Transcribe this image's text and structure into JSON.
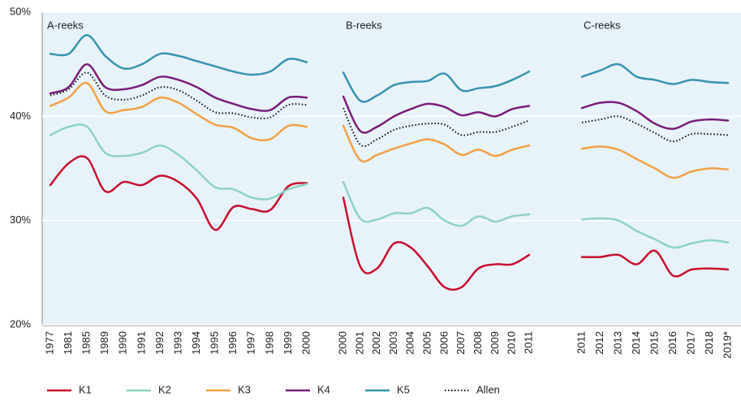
{
  "chart_data": {
    "type": "line",
    "ylim": [
      20,
      50
    ],
    "yticks": [
      {
        "value": 50,
        "label": "50%"
      },
      {
        "value": 40,
        "label": "40%"
      },
      {
        "value": 30,
        "label": "30%"
      },
      {
        "value": 20,
        "label": "20%"
      }
    ],
    "grid": true,
    "series": [
      {
        "name": "K1",
        "color": "#c8102e",
        "style": "solid"
      },
      {
        "name": "K2",
        "color": "#8fd3c1",
        "style": "solid"
      },
      {
        "name": "K3",
        "color": "#f2a04a",
        "style": "solid"
      },
      {
        "name": "K4",
        "color": "#7b1f7a",
        "style": "solid"
      },
      {
        "name": "K5",
        "color": "#3a93b0",
        "style": "solid"
      },
      {
        "name": "Allen",
        "color": "#111111",
        "style": "dotted"
      }
    ],
    "panels": [
      {
        "title": "A-reeks",
        "categories": [
          "1977",
          "1981",
          "1985",
          "1989",
          "1990",
          "1991",
          "1992",
          "1993",
          "1994",
          "1995",
          "1996",
          "1997",
          "1998",
          "1999",
          "2000"
        ],
        "values": [
          [
            33.4,
            35.5,
            36,
            32.8,
            33.7,
            33.4,
            34.3,
            33.7,
            32.1,
            29.1,
            31.3,
            31.1,
            31,
            33.3,
            33.6
          ],
          [
            38.2,
            39,
            39,
            36.5,
            36.2,
            36.5,
            37.2,
            36.3,
            34.8,
            33.2,
            33,
            32.2,
            32.1,
            33,
            33.5
          ],
          [
            41,
            41.8,
            43.2,
            40.5,
            40.6,
            40.9,
            41.8,
            41.3,
            40.2,
            39.2,
            38.9,
            37.9,
            37.8,
            39.1,
            39
          ],
          [
            42.2,
            42.8,
            45,
            42.8,
            42.6,
            43,
            43.8,
            43.5,
            42.8,
            41.8,
            41.2,
            40.7,
            40.6,
            41.8,
            41.8
          ],
          [
            46,
            46,
            47.8,
            45.8,
            44.6,
            45,
            46,
            45.8,
            45.3,
            44.8,
            44.3,
            44,
            44.3,
            45.5,
            45.2
          ],
          [
            42,
            42.6,
            44.2,
            42,
            41.6,
            42,
            42.8,
            42.5,
            41.5,
            40.4,
            40.3,
            39.9,
            39.9,
            41.1,
            41.1
          ]
        ]
      },
      {
        "title": "B-reeks",
        "categories": [
          "2000",
          "2001",
          "2002",
          "2003",
          "2004",
          "2005",
          "2006",
          "2007",
          "2008",
          "2009",
          "2010",
          "2011"
        ],
        "values": [
          [
            32.2,
            25.6,
            25.4,
            27.8,
            27.4,
            25.6,
            23.6,
            23.6,
            25.4,
            25.8,
            25.8,
            26.7
          ],
          [
            33.7,
            30.2,
            30.1,
            30.7,
            30.7,
            31.2,
            30,
            29.5,
            30.4,
            29.9,
            30.4,
            30.6
          ],
          [
            39.1,
            35.8,
            36.3,
            36.9,
            37.4,
            37.8,
            37.3,
            36.3,
            36.8,
            36.2,
            36.8,
            37.2
          ],
          [
            41.9,
            38.6,
            39,
            40,
            40.7,
            41.2,
            40.9,
            40.1,
            40.4,
            40,
            40.7,
            41
          ],
          [
            44.2,
            41.5,
            42,
            43,
            43.3,
            43.4,
            44.1,
            42.5,
            42.7,
            42.9,
            43.5,
            44.3
          ],
          [
            40.8,
            37.3,
            37.8,
            38.7,
            39.1,
            39.3,
            39.2,
            38.2,
            38.5,
            38.5,
            39,
            39.6
          ]
        ]
      },
      {
        "title": "C-reeks",
        "categories": [
          "2011",
          "2012",
          "2013",
          "2014",
          "2015",
          "2016",
          "2017",
          "2018",
          "2019*"
        ],
        "values": [
          [
            26.5,
            26.5,
            26.7,
            25.8,
            27.1,
            24.7,
            25.3,
            25.4,
            25.3
          ],
          [
            30.1,
            30.2,
            30,
            29,
            28.2,
            27.4,
            27.8,
            28.1,
            27.9
          ],
          [
            36.9,
            37.1,
            36.8,
            35.9,
            35,
            34.1,
            34.7,
            35,
            34.9
          ],
          [
            40.8,
            41.3,
            41.3,
            40.5,
            39.3,
            38.8,
            39.5,
            39.7,
            39.6
          ],
          [
            43.8,
            44.4,
            45,
            43.8,
            43.5,
            43.1,
            43.5,
            43.3,
            43.2
          ],
          [
            39.4,
            39.7,
            40,
            39.3,
            38.4,
            37.6,
            38.3,
            38.3,
            38.2
          ]
        ]
      }
    ]
  }
}
